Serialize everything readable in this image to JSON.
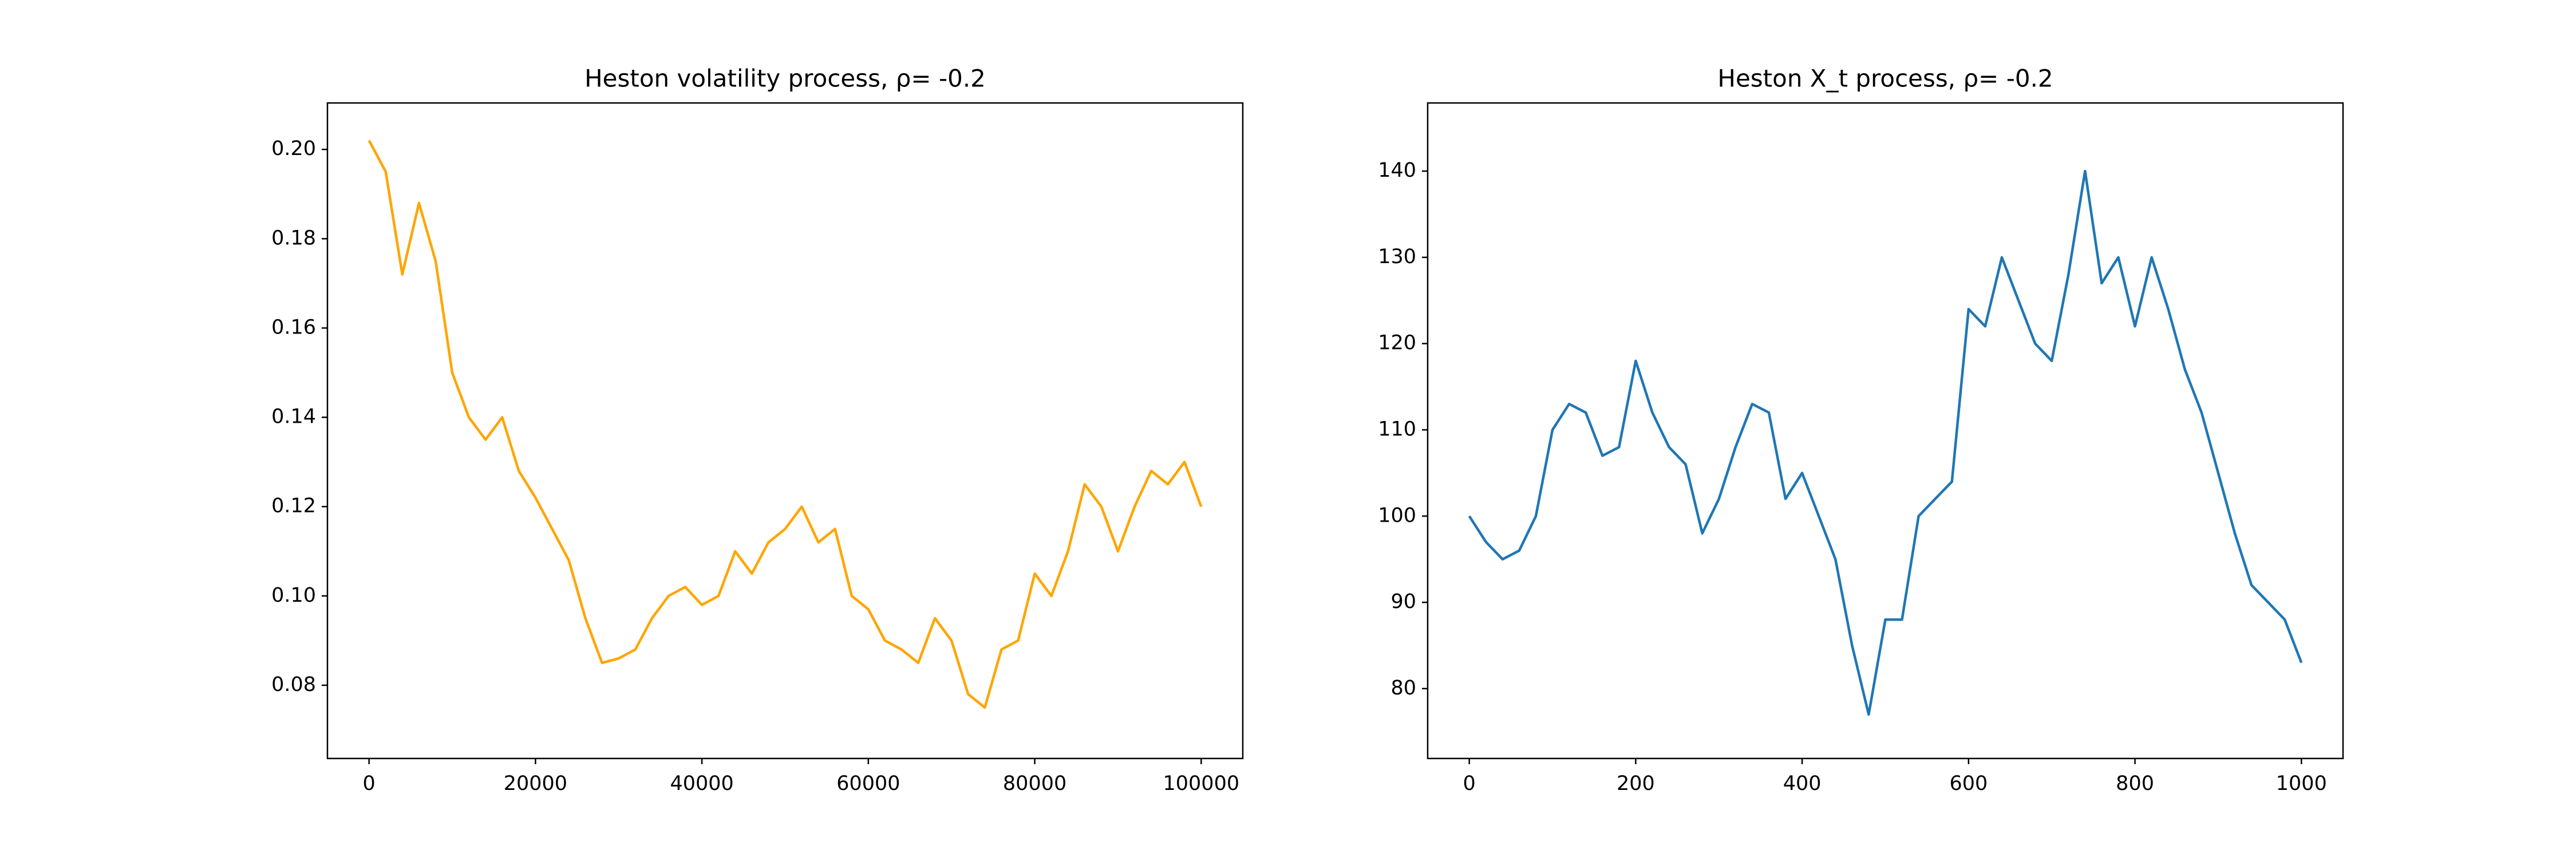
{
  "chart_data": [
    {
      "type": "line",
      "title": "Heston volatility process, ρ= -0.2",
      "x": [
        0,
        2000,
        4000,
        6000,
        8000,
        10000,
        12000,
        14000,
        16000,
        18000,
        20000,
        22000,
        24000,
        26000,
        28000,
        30000,
        32000,
        34000,
        36000,
        38000,
        40000,
        42000,
        44000,
        46000,
        48000,
        50000,
        52000,
        54000,
        56000,
        58000,
        60000,
        62000,
        64000,
        66000,
        68000,
        70000,
        72000,
        74000,
        76000,
        78000,
        80000,
        82000,
        84000,
        86000,
        88000,
        90000,
        92000,
        94000,
        96000,
        98000,
        100000
      ],
      "series": [
        {
          "color": "orange",
          "values": [
            0.202,
            0.195,
            0.172,
            0.188,
            0.175,
            0.15,
            0.14,
            0.135,
            0.14,
            0.128,
            0.122,
            0.115,
            0.108,
            0.095,
            0.085,
            0.086,
            0.088,
            0.095,
            0.1,
            0.102,
            0.098,
            0.1,
            0.11,
            0.105,
            0.112,
            0.115,
            0.12,
            0.112,
            0.115,
            0.1,
            0.097,
            0.09,
            0.088,
            0.085,
            0.095,
            0.09,
            0.078,
            0.075,
            0.088,
            0.09,
            0.105,
            0.1,
            0.11,
            0.125,
            0.12,
            0.11,
            0.12,
            0.128,
            0.125,
            0.13,
            0.12
          ]
        }
      ],
      "xlim": [
        -5000,
        105000
      ],
      "ylim": [
        0.0636,
        0.2104
      ],
      "xticks": [
        0,
        20000,
        40000,
        60000,
        80000,
        100000
      ],
      "yticks": [
        {
          "value": 0.08,
          "label": "0.08"
        },
        {
          "value": 0.1,
          "label": "0.10"
        },
        {
          "value": 0.12,
          "label": "0.12"
        },
        {
          "value": 0.14,
          "label": "0.14"
        },
        {
          "value": 0.16,
          "label": "0.16"
        },
        {
          "value": 0.18,
          "label": "0.18"
        },
        {
          "value": 0.2,
          "label": "0.20"
        }
      ],
      "grid": false
    },
    {
      "type": "line",
      "title": "Heston X_t process, ρ= -0.2",
      "x": [
        0,
        20,
        40,
        60,
        80,
        100,
        120,
        140,
        160,
        180,
        200,
        220,
        240,
        260,
        280,
        300,
        320,
        340,
        360,
        380,
        400,
        420,
        440,
        460,
        480,
        500,
        520,
        540,
        560,
        580,
        600,
        620,
        640,
        660,
        680,
        700,
        720,
        740,
        760,
        780,
        800,
        820,
        840,
        860,
        880,
        900,
        920,
        940,
        960,
        980,
        1000
      ],
      "series": [
        {
          "color": "#1f77b4",
          "values": [
            100,
            97,
            95,
            96,
            100,
            110,
            113,
            112,
            107,
            108,
            118,
            112,
            108,
            106,
            98,
            102,
            108,
            113,
            112,
            102,
            105,
            100,
            95,
            85,
            77,
            88,
            88,
            100,
            102,
            104,
            124,
            122,
            130,
            125,
            120,
            118,
            128,
            140,
            127,
            130,
            122,
            130,
            124,
            117,
            112,
            105,
            98,
            92,
            90,
            88,
            83
          ]
        }
      ],
      "xlim": [
        -50,
        1050
      ],
      "ylim": [
        71.9,
        147.9
      ],
      "xticks": [
        0,
        200,
        400,
        600,
        800,
        1000
      ],
      "yticks": [
        80,
        90,
        100,
        110,
        120,
        130,
        140
      ],
      "grid": false
    }
  ]
}
